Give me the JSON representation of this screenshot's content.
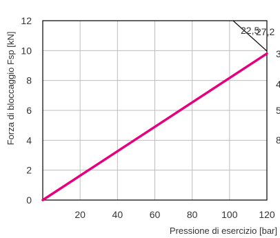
{
  "chart_data": {
    "type": "line",
    "title": "",
    "xlabel": "Pressione di esercizio [bar]",
    "ylabel": "Forza di bloccaggio Fsp [kN]",
    "xlim": [
      0,
      120
    ],
    "ylim": [
      0,
      12
    ],
    "x_ticks": [
      "20",
      "40",
      "60",
      "80",
      "100",
      "120"
    ],
    "y_ticks": [
      "0",
      "2",
      "4",
      "6",
      "8",
      "10",
      "12"
    ],
    "grid": true,
    "series": [
      {
        "x": [
          0,
          120
        ],
        "y": [
          0,
          9.8
        ],
        "color": "#e6007e"
      }
    ],
    "annotations": {
      "top": [
        "22,5",
        "27,2"
      ],
      "right": [
        "3",
        "4",
        "5",
        "8"
      ]
    }
  }
}
